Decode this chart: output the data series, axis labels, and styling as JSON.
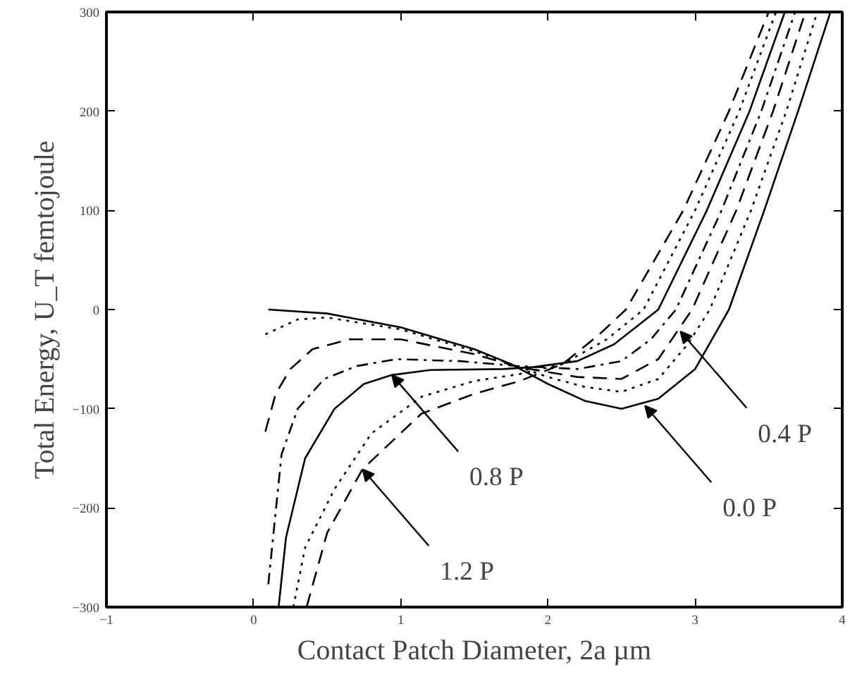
{
  "chart_data": {
    "type": "line",
    "xlabel": "Contact Patch Diameter, 2a µm",
    "ylabel": "Total Energy, U_T femtojoule",
    "xlim": [
      -1,
      4
    ],
    "ylim": [
      -300,
      300
    ],
    "xticks": [
      -1,
      0,
      1,
      2,
      3,
      4
    ],
    "yticks": [
      -300,
      -200,
      -100,
      0,
      100,
      200,
      300
    ],
    "grid": false,
    "marker": "none",
    "series": [
      {
        "color": "#000000",
        "line_style": "solid",
        "x": [
          0.1,
          0.5,
          1.0,
          1.5,
          1.75,
          2.0,
          2.25,
          2.5,
          2.75,
          3.0,
          3.23,
          3.47,
          3.7,
          3.92
        ],
        "values": [
          0,
          -4,
          -18,
          -40,
          -55,
          -75,
          -92,
          -100,
          -90,
          -60,
          0,
          100,
          200,
          300
        ]
      },
      {
        "color": "#000000",
        "line_style": "dotted",
        "x": [
          0.08,
          0.3,
          0.5,
          1.0,
          1.5,
          1.75,
          2.0,
          2.25,
          2.5,
          2.75,
          2.95,
          3.1,
          3.38,
          3.62,
          3.83
        ],
        "values": [
          -25,
          -10,
          -8,
          -20,
          -42,
          -55,
          -68,
          -78,
          -83,
          -70,
          -35,
          0,
          100,
          200,
          300
        ]
      },
      {
        "color": "#000000",
        "line_style": "dashed",
        "x": [
          0.08,
          0.15,
          0.25,
          0.4,
          0.65,
          1.0,
          1.5,
          1.8,
          2.2,
          2.5,
          2.75,
          2.98,
          3.28,
          3.53,
          3.75
        ],
        "values": [
          -123,
          -85,
          -60,
          -40,
          -30,
          -30,
          -45,
          -58,
          -68,
          -70,
          -50,
          0,
          100,
          200,
          300
        ]
      },
      {
        "color": "#000000",
        "line_style": "dashdot",
        "x": [
          0.1,
          0.19,
          0.3,
          0.48,
          0.7,
          0.97,
          1.4,
          1.8,
          2.2,
          2.5,
          2.7,
          2.87,
          3.18,
          3.45,
          3.68
        ],
        "values": [
          -277,
          -146,
          -100,
          -70,
          -57,
          -50,
          -52,
          -57,
          -60,
          -52,
          -30,
          0,
          100,
          200,
          300
        ]
      },
      {
        "color": "#000000",
        "line_style": "solid",
        "x": [
          0.17,
          0.22,
          0.35,
          0.55,
          0.75,
          0.94,
          1.2,
          1.7,
          1.9,
          2.2,
          2.45,
          2.75,
          3.08,
          3.37,
          3.61
        ],
        "values": [
          -300,
          -230,
          -150,
          -100,
          -75,
          -66,
          -61,
          -60,
          -58,
          -52,
          -35,
          0,
          100,
          200,
          300
        ]
      },
      {
        "color": "#000000",
        "line_style": "dotted",
        "x": [
          0.27,
          0.35,
          0.55,
          0.8,
          1.14,
          1.5,
          1.81,
          2.1,
          2.4,
          2.65,
          3.0,
          3.3,
          3.55
        ],
        "values": [
          -300,
          -240,
          -181,
          -125,
          -88,
          -72,
          -65,
          -55,
          -30,
          0,
          100,
          200,
          300
        ]
      },
      {
        "color": "#000000",
        "line_style": "dashed",
        "x": [
          0.36,
          0.5,
          0.74,
          1.14,
          1.5,
          1.81,
          2.1,
          2.35,
          2.53,
          2.92,
          3.23,
          3.5
        ],
        "values": [
          -300,
          -225,
          -161,
          -105,
          -85,
          -72,
          -55,
          -25,
          0,
          100,
          200,
          300
        ]
      }
    ],
    "annotations": [
      {
        "text": "0.0 P",
        "x": 2.66,
        "y": -97
      },
      {
        "text": "0.4 P",
        "x": 2.9,
        "y": -22
      },
      {
        "text": "0.8 P",
        "x": 0.94,
        "y": -66
      },
      {
        "text": "1.2 P",
        "x": 0.74,
        "y": -161
      }
    ]
  }
}
